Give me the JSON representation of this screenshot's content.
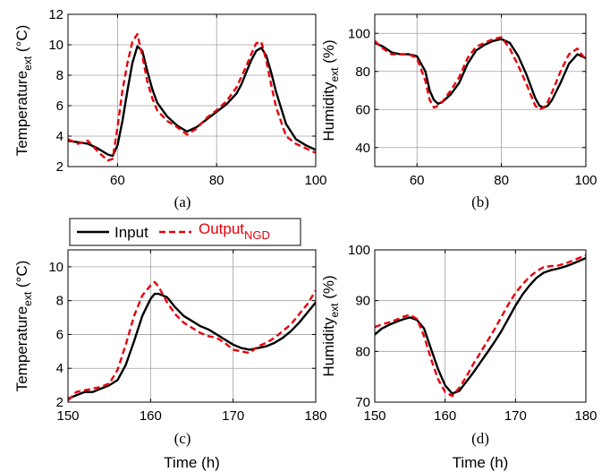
{
  "chart_data": [
    {
      "type": "line",
      "panel_label": "(a)",
      "ylabel": "Temperature",
      "ylabel_sub": "ext",
      "ylabel_unit": " (°C)",
      "xlabel": "",
      "xlim": [
        50,
        100
      ],
      "ylim": [
        2,
        12
      ],
      "xticks": [
        60,
        80,
        100
      ],
      "yticks": [
        2,
        4,
        6,
        8,
        10,
        12
      ],
      "grid": true,
      "series": [
        {
          "name": "Input",
          "color": "#000000",
          "dash": "solid",
          "x": [
            50,
            52,
            54,
            56,
            58,
            59,
            60,
            61,
            62,
            63,
            64,
            65,
            66,
            67,
            68,
            70,
            72,
            74,
            76,
            78,
            80,
            82,
            84,
            85,
            86,
            87,
            88,
            89,
            90,
            91,
            92,
            94,
            96,
            98,
            100
          ],
          "y": [
            3.7,
            3.6,
            3.5,
            3.2,
            2.8,
            2.7,
            3.4,
            5.0,
            7.0,
            8.8,
            9.9,
            9.6,
            8.3,
            7.1,
            6.2,
            5.3,
            4.7,
            4.3,
            4.6,
            5.1,
            5.6,
            6.1,
            6.8,
            7.4,
            8.2,
            9.0,
            9.6,
            9.8,
            9.3,
            8.2,
            6.9,
            4.8,
            3.8,
            3.4,
            3.1
          ]
        },
        {
          "name": "Output",
          "name_sub": "NGD",
          "color": "#e8000b",
          "dash": "dashed",
          "x": [
            50,
            52,
            54,
            56,
            58,
            59,
            60,
            61,
            62,
            63,
            64,
            65,
            66,
            67,
            68,
            70,
            72,
            74,
            76,
            78,
            80,
            82,
            84,
            85,
            86,
            87,
            88,
            89,
            90,
            91,
            92,
            94,
            96,
            98,
            100
          ],
          "y": [
            3.8,
            3.5,
            3.7,
            3.0,
            2.4,
            2.5,
            4.6,
            7.0,
            8.8,
            10.2,
            10.7,
            9.3,
            7.6,
            6.5,
            5.7,
            5.0,
            4.6,
            4.1,
            4.5,
            5.2,
            5.7,
            6.3,
            7.2,
            7.9,
            8.6,
            9.4,
            10.1,
            10.2,
            9.0,
            7.4,
            5.9,
            4.0,
            3.5,
            3.2,
            2.9
          ]
        }
      ]
    },
    {
      "type": "line",
      "panel_label": "(b)",
      "ylabel": "Humidity",
      "ylabel_sub": "ext",
      "ylabel_unit": " (%)",
      "xlabel": "",
      "xlim": [
        50,
        100
      ],
      "ylim": [
        30,
        110
      ],
      "xticks": [
        60,
        80,
        100
      ],
      "yticks": [
        40,
        60,
        80,
        100
      ],
      "grid": true,
      "series": [
        {
          "name": "Input",
          "color": "#000000",
          "dash": "solid",
          "x": [
            50,
            52,
            54,
            56,
            58,
            60,
            62,
            63,
            64,
            65,
            66,
            68,
            70,
            72,
            74,
            76,
            78,
            80,
            82,
            84,
            86,
            88,
            89,
            90,
            91,
            92,
            94,
            96,
            98,
            100
          ],
          "y": [
            95,
            93,
            90,
            89,
            89,
            88,
            80,
            70,
            65,
            63,
            64,
            68,
            74,
            84,
            91,
            94,
            96,
            97,
            95,
            88,
            78,
            66,
            62,
            61,
            62,
            65,
            74,
            84,
            89,
            87
          ]
        },
        {
          "name": "Output",
          "name_sub": "NGD",
          "color": "#e8000b",
          "dash": "dashed",
          "x": [
            50,
            52,
            54,
            56,
            58,
            60,
            62,
            63,
            64,
            65,
            66,
            68,
            70,
            72,
            74,
            76,
            78,
            80,
            82,
            84,
            86,
            88,
            89,
            90,
            91,
            92,
            94,
            96,
            98,
            100
          ],
          "y": [
            96,
            92,
            89,
            89,
            89,
            87,
            75,
            65,
            61,
            62,
            64,
            70,
            77,
            87,
            93,
            95,
            97,
            98,
            92,
            83,
            73,
            62,
            60,
            61,
            64,
            69,
            80,
            89,
            92,
            86
          ]
        }
      ]
    },
    {
      "type": "line",
      "panel_label": "(c)",
      "ylabel": "Temperature",
      "ylabel_sub": "ext",
      "ylabel_unit": " (°C)",
      "xlabel": "Time (h)",
      "xlim": [
        150,
        180
      ],
      "ylim": [
        2,
        11
      ],
      "xticks": [
        150,
        160,
        170,
        180
      ],
      "yticks": [
        2,
        4,
        6,
        8,
        10
      ],
      "grid": true,
      "legend": "top-left",
      "series": [
        {
          "name": "Input",
          "color": "#000000",
          "dash": "solid",
          "x": [
            150,
            151,
            152,
            153,
            154,
            155,
            156,
            157,
            158,
            159,
            160,
            160.5,
            161,
            162,
            163,
            164,
            165,
            166,
            167,
            168,
            169,
            170,
            171,
            172,
            173,
            174,
            175,
            176,
            177,
            178,
            179,
            180
          ],
          "y": [
            2.2,
            2.4,
            2.6,
            2.6,
            2.8,
            3.0,
            3.3,
            4.2,
            5.6,
            7.1,
            8.1,
            8.4,
            8.4,
            8.2,
            7.6,
            7.1,
            6.8,
            6.5,
            6.3,
            6.0,
            5.7,
            5.4,
            5.2,
            5.1,
            5.2,
            5.3,
            5.5,
            5.8,
            6.2,
            6.7,
            7.3,
            7.9
          ]
        },
        {
          "name": "Output",
          "name_sub": "NGD",
          "color": "#e8000b",
          "dash": "dashed",
          "x": [
            150,
            151,
            152,
            153,
            154,
            155,
            156,
            157,
            158,
            159,
            160,
            160.5,
            161,
            162,
            163,
            164,
            165,
            166,
            167,
            168,
            169,
            170,
            171,
            172,
            173,
            174,
            175,
            176,
            177,
            178,
            179,
            180
          ],
          "y": [
            2.1,
            2.6,
            2.7,
            2.8,
            2.9,
            3.1,
            3.9,
            5.4,
            7.1,
            8.3,
            8.9,
            9.1,
            8.8,
            7.9,
            7.2,
            6.7,
            6.4,
            6.1,
            5.9,
            5.8,
            5.5,
            5.1,
            5.0,
            4.9,
            5.3,
            5.5,
            5.8,
            6.2,
            6.6,
            7.2,
            7.8,
            8.6
          ]
        }
      ]
    },
    {
      "type": "line",
      "panel_label": "(d)",
      "ylabel": "Humidity",
      "ylabel_sub": "ext",
      "ylabel_unit": " (%)",
      "xlabel": "Time (h)",
      "xlim": [
        150,
        180
      ],
      "ylim": [
        70,
        100
      ],
      "xticks": [
        150,
        160,
        170,
        180
      ],
      "yticks": [
        70,
        80,
        90,
        100
      ],
      "grid": true,
      "series": [
        {
          "name": "Input",
          "color": "#000000",
          "dash": "solid",
          "x": [
            150,
            151,
            152,
            153,
            154,
            155,
            156,
            157,
            158,
            159,
            160,
            161,
            162,
            163,
            164,
            165,
            166,
            167,
            168,
            169,
            170,
            171,
            172,
            173,
            174,
            175,
            176,
            177,
            178,
            179,
            180
          ],
          "y": [
            83.3,
            84.5,
            85.2,
            85.8,
            86.3,
            86.7,
            86.2,
            84.5,
            80.5,
            76.5,
            73.3,
            71.7,
            72.2,
            74.0,
            75.8,
            77.8,
            79.8,
            81.8,
            84.0,
            86.5,
            89.0,
            91.2,
            93.0,
            94.5,
            95.5,
            96.0,
            96.3,
            96.7,
            97.2,
            97.8,
            98.4
          ]
        },
        {
          "name": "Output",
          "name_sub": "NGD",
          "color": "#e8000b",
          "dash": "dashed",
          "x": [
            150,
            151,
            152,
            153,
            154,
            155,
            156,
            157,
            158,
            159,
            160,
            161,
            162,
            163,
            164,
            165,
            166,
            167,
            168,
            169,
            170,
            171,
            172,
            173,
            174,
            175,
            176,
            177,
            178,
            179,
            180
          ],
          "y": [
            84.8,
            85.3,
            85.7,
            86.2,
            86.8,
            87.2,
            86.4,
            83.0,
            78.5,
            74.5,
            72.0,
            71.2,
            72.8,
            75.0,
            77.5,
            79.7,
            82.0,
            84.3,
            86.8,
            89.3,
            91.5,
            93.2,
            94.7,
            95.8,
            96.6,
            96.8,
            96.9,
            97.3,
            97.8,
            98.4,
            98.9
          ]
        }
      ]
    }
  ]
}
